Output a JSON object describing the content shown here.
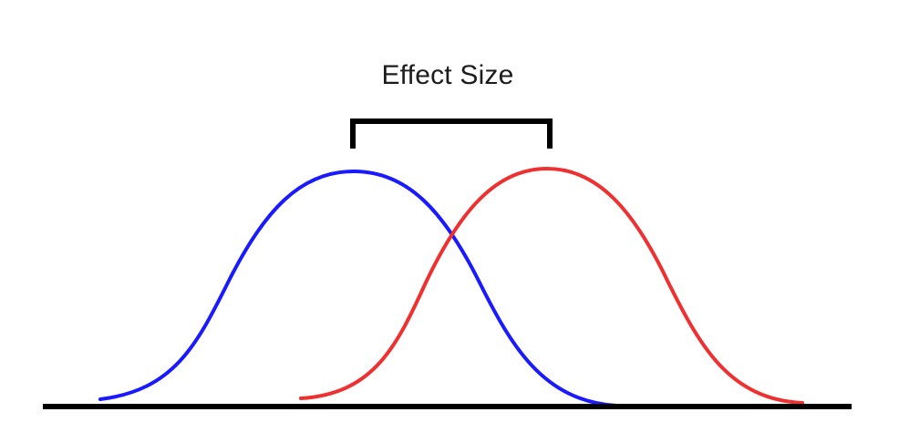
{
  "diagram": {
    "label": "Effect Size",
    "colors": {
      "group_a": "#1a1aff",
      "group_b": "#ee3030",
      "bracket": "#000000",
      "baseline": "#000000"
    }
  }
}
